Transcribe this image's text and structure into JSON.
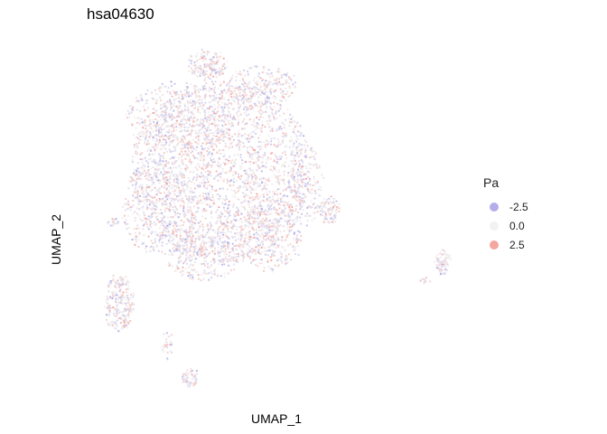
{
  "chart_data": {
    "type": "scatter",
    "title": "hsa04630",
    "xlabel": "UMAP_1",
    "ylabel": "UMAP_2",
    "grid": false,
    "legend": {
      "title": "Pa",
      "placement": "right",
      "entries": [
        {
          "label": "-2.5",
          "value": -2.5,
          "color": "#b3aee9"
        },
        {
          "label": "0.0",
          "value": 0.0,
          "color": "#f2f2f2"
        },
        {
          "label": "2.5",
          "value": 2.5,
          "color": "#f4a6a0"
        }
      ]
    },
    "color_scale": {
      "low": "#b3aee9",
      "mid": "#f2f2f2",
      "high": "#f4a6a0",
      "range": [
        -2.5,
        2.5
      ]
    }
  }
}
